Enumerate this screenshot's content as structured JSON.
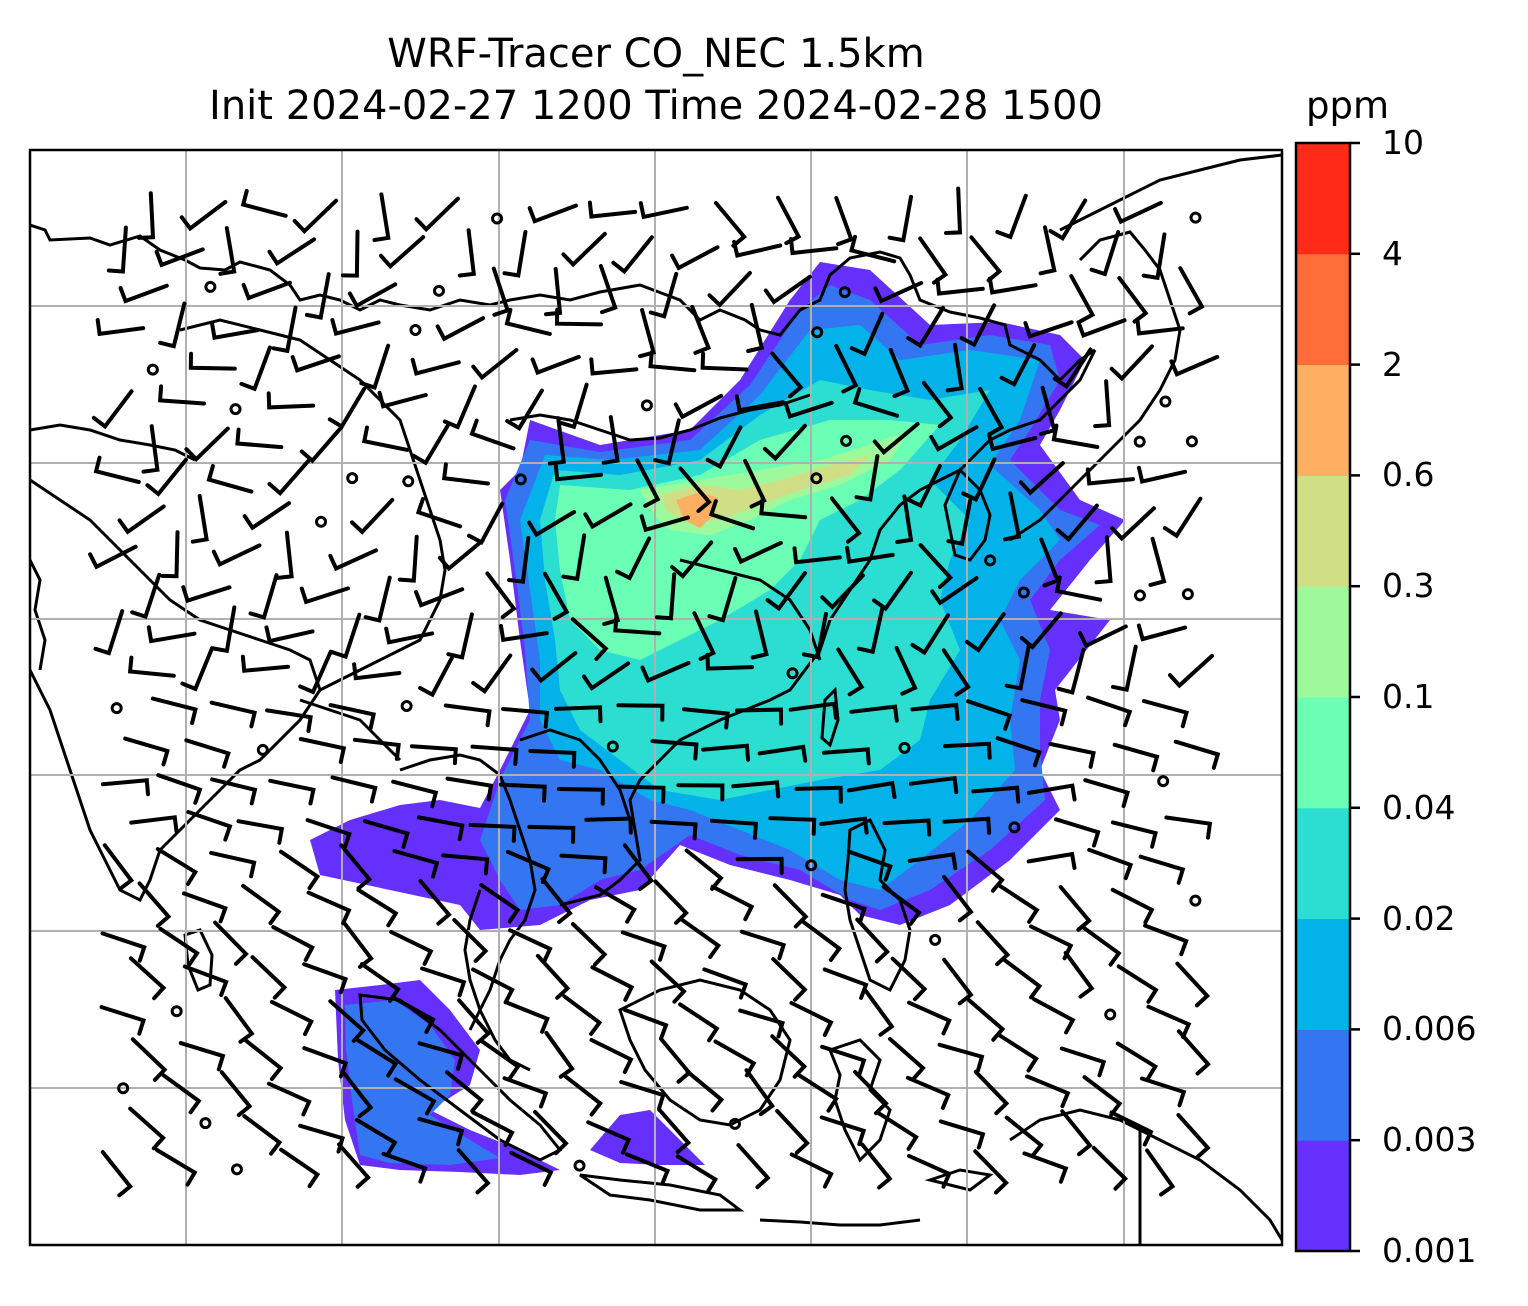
{
  "title": {
    "line1": "WRF-Tracer CO_NEC 1.5km",
    "line2": "Init 2024-02-27 1200 Time 2024-02-28 1500"
  },
  "colorbar": {
    "units": "ppm",
    "levels": [
      "0.001",
      "0.003",
      "0.006",
      "0.02",
      "0.04",
      "0.1",
      "0.3",
      "0.6",
      "2",
      "4",
      "10"
    ],
    "colors": [
      "#6530fb",
      "#3475f2",
      "#04b2ea",
      "#2cddd2",
      "#6affb5",
      "#9ef99d",
      "#d0df86",
      "#ffaf60",
      "#ff6d39",
      "#ff2a17"
    ]
  },
  "map": {
    "background": "#ffffff",
    "coastline_color": "#000000",
    "gridline_color": "#b0b0b0",
    "barb_color": "#000000"
  }
}
